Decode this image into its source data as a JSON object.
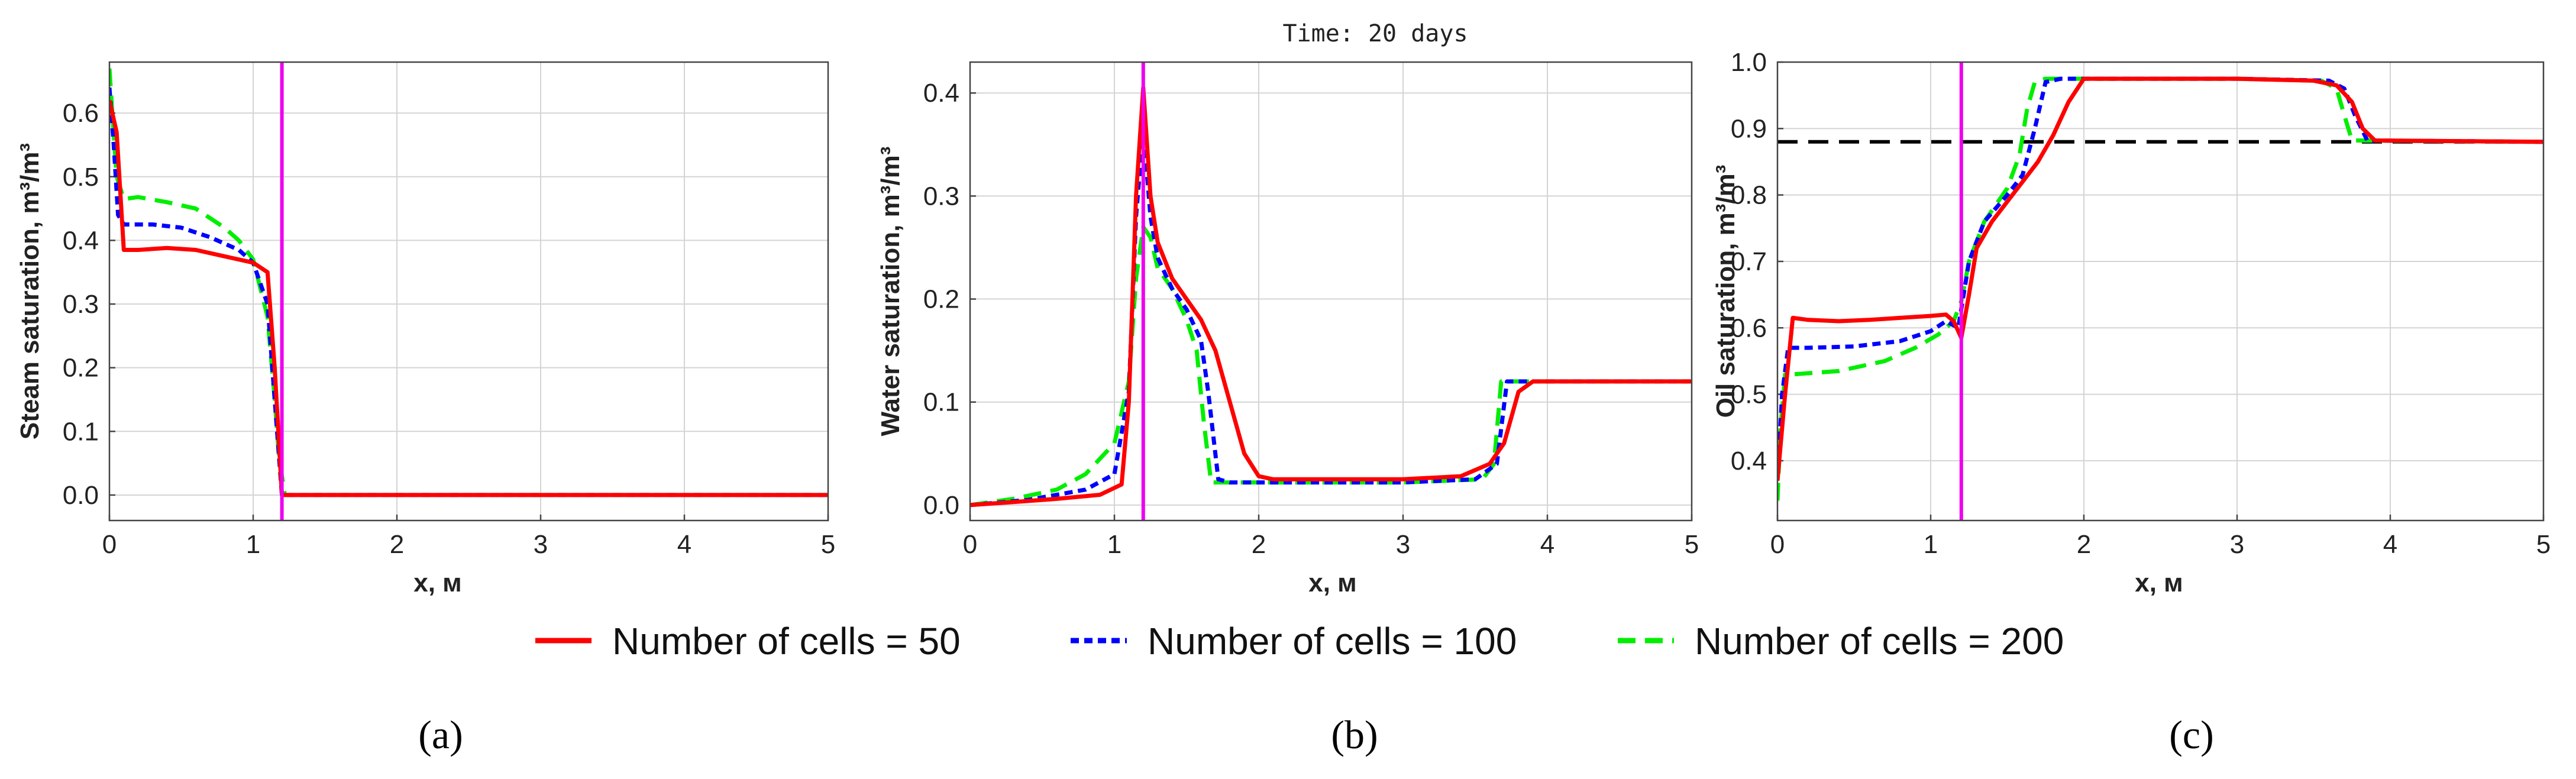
{
  "chart_data": [
    {
      "type": "line",
      "panel_label": "a",
      "ylabel": "Steam saturation, m³/m³",
      "xlabel": "x, м",
      "xlim": [
        0,
        5
      ],
      "ylim": [
        -0.04,
        0.68
      ],
      "xticks": [
        "0",
        "1",
        "2",
        "3",
        "4",
        "5"
      ],
      "yticks": [
        "0.0",
        "0.1",
        "0.2",
        "0.3",
        "0.4",
        "0.5",
        "0.6"
      ],
      "vline_x": 1.2,
      "series": [
        {
          "name": "Number of cells = 50",
          "x": [
            0,
            0.05,
            0.1,
            0.2,
            0.4,
            0.6,
            0.8,
            1.0,
            1.1,
            1.15,
            1.2,
            1.25,
            1.5,
            5.0
          ],
          "y": [
            0.62,
            0.57,
            0.385,
            0.385,
            0.388,
            0.385,
            0.375,
            0.365,
            0.35,
            0.2,
            0.0,
            0.0,
            0.0,
            0.0
          ]
        },
        {
          "name": "Number of cells = 100",
          "x": [
            0,
            0.03,
            0.06,
            0.1,
            0.3,
            0.5,
            0.7,
            0.9,
            1.0,
            1.1,
            1.15,
            1.2,
            1.3,
            5.0
          ],
          "y": [
            0.64,
            0.55,
            0.44,
            0.425,
            0.425,
            0.42,
            0.405,
            0.385,
            0.365,
            0.3,
            0.15,
            0.0,
            0.0,
            0.0
          ]
        },
        {
          "name": "Number of cells = 200",
          "x": [
            0,
            0.02,
            0.05,
            0.1,
            0.2,
            0.4,
            0.6,
            0.8,
            0.9,
            1.0,
            1.1,
            1.15,
            1.18,
            1.22,
            5.0
          ],
          "y": [
            0.67,
            0.6,
            0.5,
            0.465,
            0.468,
            0.46,
            0.45,
            0.42,
            0.4,
            0.37,
            0.28,
            0.15,
            0.06,
            0.0,
            0.0
          ]
        }
      ]
    },
    {
      "type": "line",
      "panel_label": "b",
      "title": "Time: 20 days",
      "ylabel": "Water saturation, m³/m³",
      "xlabel": "x, м",
      "xlim": [
        0,
        5
      ],
      "ylim": [
        -0.015,
        0.43
      ],
      "xticks": [
        "0",
        "1",
        "2",
        "3",
        "4",
        "5"
      ],
      "yticks": [
        "0.0",
        "0.1",
        "0.2",
        "0.3",
        "0.4"
      ],
      "vline_x": 1.2,
      "series": [
        {
          "name": "Number of cells = 50",
          "x": [
            0,
            0.3,
            0.6,
            0.9,
            1.05,
            1.1,
            1.15,
            1.2,
            1.25,
            1.3,
            1.4,
            1.5,
            1.6,
            1.7,
            1.8,
            1.9,
            2.0,
            2.1,
            2.5,
            3.0,
            3.4,
            3.6,
            3.7,
            3.8,
            3.9,
            5.0
          ],
          "y": [
            0.0,
            0.003,
            0.006,
            0.01,
            0.02,
            0.1,
            0.3,
            0.405,
            0.3,
            0.255,
            0.22,
            0.2,
            0.18,
            0.15,
            0.1,
            0.05,
            0.028,
            0.025,
            0.025,
            0.025,
            0.028,
            0.04,
            0.06,
            0.11,
            0.12,
            0.12
          ]
        },
        {
          "name": "Number of cells = 100",
          "x": [
            0,
            0.4,
            0.8,
            1.0,
            1.1,
            1.15,
            1.2,
            1.25,
            1.3,
            1.4,
            1.5,
            1.6,
            1.65,
            1.72,
            1.8,
            2.5,
            3.0,
            3.5,
            3.65,
            3.72,
            3.8,
            5.0
          ],
          "y": [
            0.0,
            0.005,
            0.015,
            0.03,
            0.11,
            0.28,
            0.365,
            0.28,
            0.24,
            0.21,
            0.19,
            0.16,
            0.11,
            0.025,
            0.022,
            0.022,
            0.022,
            0.025,
            0.04,
            0.12,
            0.12,
            0.12
          ]
        },
        {
          "name": "Number of cells = 200",
          "x": [
            0,
            0.3,
            0.6,
            0.8,
            1.0,
            1.1,
            1.15,
            1.2,
            1.25,
            1.3,
            1.4,
            1.5,
            1.57,
            1.62,
            1.67,
            1.75,
            2.5,
            3.0,
            3.55,
            3.63,
            3.68,
            3.75,
            5.0
          ],
          "y": [
            0.0,
            0.006,
            0.015,
            0.03,
            0.06,
            0.12,
            0.22,
            0.27,
            0.26,
            0.23,
            0.21,
            0.18,
            0.15,
            0.08,
            0.022,
            0.022,
            0.022,
            0.022,
            0.025,
            0.04,
            0.12,
            0.12,
            0.12
          ]
        }
      ]
    },
    {
      "type": "line",
      "panel_label": "c",
      "ylabel": "Oil saturation, m³/m³",
      "xlabel": "x, м",
      "xlim": [
        0,
        5
      ],
      "ylim": [
        0.31,
        1.0
      ],
      "xticks": [
        "0",
        "1",
        "2",
        "3",
        "4",
        "5"
      ],
      "yticks": [
        "0.4",
        "0.5",
        "0.6",
        "0.7",
        "0.8",
        "0.9",
        "1.0"
      ],
      "vline_x": 1.2,
      "hline_y": 0.88,
      "series": [
        {
          "name": "Number of cells = 50",
          "x": [
            0,
            0.05,
            0.1,
            0.2,
            0.4,
            0.6,
            0.8,
            1.0,
            1.1,
            1.15,
            1.2,
            1.25,
            1.3,
            1.4,
            1.5,
            1.6,
            1.7,
            1.8,
            1.9,
            2.0,
            2.5,
            3.0,
            3.5,
            3.65,
            3.75,
            3.82,
            3.9,
            5.0
          ],
          "y": [
            0.37,
            0.5,
            0.615,
            0.612,
            0.61,
            0.612,
            0.615,
            0.618,
            0.62,
            0.61,
            0.585,
            0.65,
            0.72,
            0.76,
            0.79,
            0.82,
            0.85,
            0.89,
            0.94,
            0.975,
            0.975,
            0.975,
            0.972,
            0.965,
            0.94,
            0.9,
            0.882,
            0.88
          ]
        },
        {
          "name": "Number of cells = 100",
          "x": [
            0,
            0.03,
            0.07,
            0.2,
            0.5,
            0.8,
            1.0,
            1.1,
            1.18,
            1.25,
            1.35,
            1.5,
            1.6,
            1.68,
            1.75,
            1.85,
            2.5,
            3.0,
            3.6,
            3.7,
            3.77,
            3.85,
            5.0
          ],
          "y": [
            0.37,
            0.5,
            0.57,
            0.57,
            0.572,
            0.58,
            0.595,
            0.61,
            0.6,
            0.7,
            0.76,
            0.8,
            0.83,
            0.9,
            0.97,
            0.975,
            0.975,
            0.975,
            0.972,
            0.96,
            0.92,
            0.882,
            0.88
          ]
        },
        {
          "name": "Number of cells = 200",
          "x": [
            0,
            0.02,
            0.05,
            0.1,
            0.4,
            0.7,
            0.9,
            1.05,
            1.15,
            1.2,
            1.25,
            1.35,
            1.5,
            1.58,
            1.63,
            1.68,
            1.75,
            2.5,
            3.0,
            3.55,
            3.65,
            3.7,
            3.75,
            5.0
          ],
          "y": [
            0.34,
            0.45,
            0.53,
            0.53,
            0.535,
            0.55,
            0.57,
            0.59,
            0.61,
            0.64,
            0.7,
            0.76,
            0.81,
            0.86,
            0.93,
            0.97,
            0.975,
            0.975,
            0.975,
            0.972,
            0.96,
            0.92,
            0.882,
            0.88
          ]
        }
      ]
    }
  ],
  "legend": [
    {
      "label": "Number of cells = 50",
      "color": "#ff0000",
      "style": "solid"
    },
    {
      "label": "Number of cells = 100",
      "color": "#0000ff",
      "style": "dotted"
    },
    {
      "label": "Number of cells = 200",
      "color": "#00ee00",
      "style": "dashed"
    }
  ],
  "colors": {
    "vline": "#ee00ee",
    "hline": "#000000"
  },
  "panel_captions": {
    "a": "(a)",
    "b": "(b)",
    "c": "(c)"
  },
  "superscript": "3"
}
